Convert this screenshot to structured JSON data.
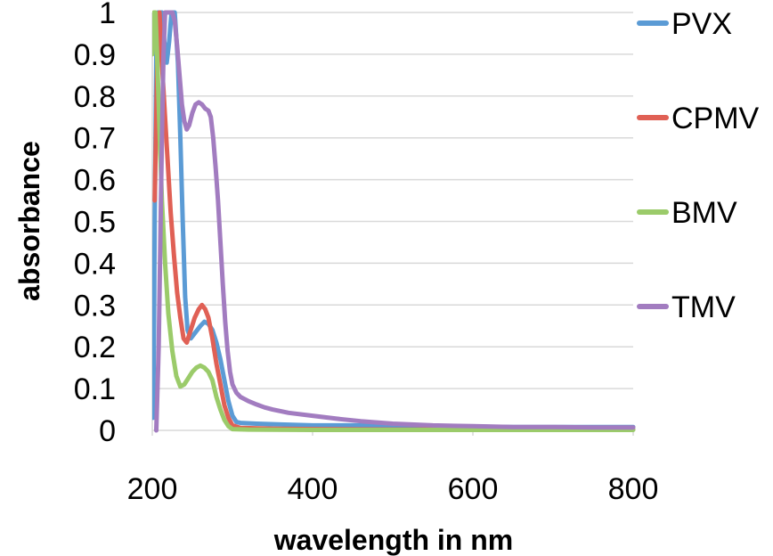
{
  "chart_data": {
    "type": "line",
    "title": "",
    "xlabel": "wavelength in nm",
    "ylabel": "absorbance",
    "xlim": [
      200,
      800
    ],
    "ylim": [
      0,
      1
    ],
    "xticks": [
      "200",
      "400",
      "600",
      "800"
    ],
    "yticks": [
      "0",
      "0.1",
      "0.2",
      "0.3",
      "0.4",
      "0.5",
      "0.6",
      "0.7",
      "0.8",
      "0.9",
      "1"
    ],
    "grid": true,
    "legend_position": "right",
    "series": [
      {
        "name": "PVX",
        "color": "#5b9bd5",
        "points": [
          [
            201,
            0.03
          ],
          [
            202,
            0.2
          ],
          [
            203,
            0.5
          ],
          [
            205,
            0.9
          ],
          [
            207,
            1.0
          ],
          [
            212,
            1.0
          ],
          [
            215,
            0.93
          ],
          [
            218,
            0.88
          ],
          [
            221,
            0.93
          ],
          [
            224,
            1.0
          ],
          [
            228,
            1.0
          ],
          [
            232,
            0.88
          ],
          [
            235,
            0.7
          ],
          [
            238,
            0.5
          ],
          [
            241,
            0.32
          ],
          [
            244,
            0.24
          ],
          [
            248,
            0.22
          ],
          [
            254,
            0.235
          ],
          [
            260,
            0.25
          ],
          [
            265,
            0.26
          ],
          [
            270,
            0.255
          ],
          [
            275,
            0.24
          ],
          [
            280,
            0.21
          ],
          [
            285,
            0.17
          ],
          [
            290,
            0.12
          ],
          [
            295,
            0.07
          ],
          [
            300,
            0.035
          ],
          [
            305,
            0.02
          ],
          [
            310,
            0.018
          ],
          [
            330,
            0.016
          ],
          [
            360,
            0.014
          ],
          [
            400,
            0.012
          ],
          [
            450,
            0.012
          ],
          [
            500,
            0.011
          ],
          [
            550,
            0.01
          ],
          [
            600,
            0.009
          ],
          [
            650,
            0.008
          ],
          [
            700,
            0.008
          ],
          [
            750,
            0.008
          ],
          [
            800,
            0.008
          ]
        ]
      },
      {
        "name": "CPMV",
        "color": "#e06055",
        "points": [
          [
            203,
            0.55
          ],
          [
            205,
            0.75
          ],
          [
            207,
            0.95
          ],
          [
            209,
            1.0
          ],
          [
            212,
            0.88
          ],
          [
            215,
            0.78
          ],
          [
            219,
            0.65
          ],
          [
            223,
            0.52
          ],
          [
            227,
            0.42
          ],
          [
            231,
            0.33
          ],
          [
            235,
            0.27
          ],
          [
            239,
            0.22
          ],
          [
            243,
            0.21
          ],
          [
            248,
            0.24
          ],
          [
            253,
            0.27
          ],
          [
            258,
            0.29
          ],
          [
            262,
            0.3
          ],
          [
            266,
            0.29
          ],
          [
            270,
            0.27
          ],
          [
            275,
            0.22
          ],
          [
            280,
            0.16
          ],
          [
            285,
            0.11
          ],
          [
            290,
            0.06
          ],
          [
            295,
            0.03
          ],
          [
            300,
            0.012
          ],
          [
            310,
            0.006
          ],
          [
            350,
            0.004
          ],
          [
            400,
            0.003
          ],
          [
            500,
            0.002
          ],
          [
            600,
            0.002
          ],
          [
            700,
            0.002
          ],
          [
            800,
            0.002
          ]
        ]
      },
      {
        "name": "BMV",
        "color": "#9bcb6a",
        "points": [
          [
            200,
            0.9
          ],
          [
            202,
            1.0
          ],
          [
            204,
            1.0
          ],
          [
            206,
            0.9
          ],
          [
            209,
            0.72
          ],
          [
            212,
            0.55
          ],
          [
            216,
            0.4
          ],
          [
            220,
            0.28
          ],
          [
            225,
            0.19
          ],
          [
            230,
            0.13
          ],
          [
            235,
            0.105
          ],
          [
            240,
            0.11
          ],
          [
            245,
            0.125
          ],
          [
            250,
            0.14
          ],
          [
            255,
            0.15
          ],
          [
            260,
            0.155
          ],
          [
            265,
            0.15
          ],
          [
            270,
            0.14
          ],
          [
            275,
            0.12
          ],
          [
            280,
            0.08
          ],
          [
            285,
            0.05
          ],
          [
            290,
            0.025
          ],
          [
            295,
            0.01
          ],
          [
            300,
            0.003
          ],
          [
            320,
            0.002
          ],
          [
            400,
            0.001
          ],
          [
            500,
            0.001
          ],
          [
            600,
            0.001
          ],
          [
            700,
            0.001
          ],
          [
            800,
            0.001
          ]
        ]
      },
      {
        "name": "TMV",
        "color": "#a27cc0",
        "points": [
          [
            205,
            0.0
          ],
          [
            208,
            0.2
          ],
          [
            210,
            0.45
          ],
          [
            212,
            0.7
          ],
          [
            214,
            0.9
          ],
          [
            216,
            1.0
          ],
          [
            225,
            1.0
          ],
          [
            228,
            0.98
          ],
          [
            231,
            0.92
          ],
          [
            234,
            0.85
          ],
          [
            237,
            0.78
          ],
          [
            240,
            0.74
          ],
          [
            243,
            0.72
          ],
          [
            246,
            0.73
          ],
          [
            250,
            0.76
          ],
          [
            254,
            0.78
          ],
          [
            258,
            0.785
          ],
          [
            262,
            0.78
          ],
          [
            266,
            0.77
          ],
          [
            270,
            0.765
          ],
          [
            273,
            0.75
          ],
          [
            276,
            0.7
          ],
          [
            279,
            0.63
          ],
          [
            282,
            0.55
          ],
          [
            285,
            0.45
          ],
          [
            288,
            0.35
          ],
          [
            291,
            0.26
          ],
          [
            294,
            0.19
          ],
          [
            297,
            0.14
          ],
          [
            300,
            0.11
          ],
          [
            305,
            0.09
          ],
          [
            310,
            0.08
          ],
          [
            320,
            0.07
          ],
          [
            330,
            0.062
          ],
          [
            340,
            0.055
          ],
          [
            350,
            0.05
          ],
          [
            370,
            0.042
          ],
          [
            400,
            0.035
          ],
          [
            430,
            0.028
          ],
          [
            460,
            0.022
          ],
          [
            500,
            0.016
          ],
          [
            550,
            0.012
          ],
          [
            600,
            0.01
          ],
          [
            650,
            0.008
          ],
          [
            700,
            0.008
          ],
          [
            750,
            0.007
          ],
          [
            800,
            0.007
          ]
        ]
      }
    ]
  }
}
